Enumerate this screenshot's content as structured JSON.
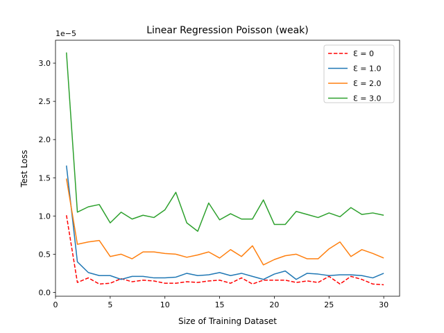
{
  "chart_data": {
    "type": "line",
    "title": "Linear Regression Poisson (weak)",
    "xlabel": "Size of Training Dataset",
    "ylabel": "Test Loss",
    "y_offset_label": "1e−5",
    "xlim": [
      0,
      31.45
    ],
    "ylim": [
      -0.05,
      3.3
    ],
    "xticks": [
      0,
      5,
      10,
      15,
      20,
      25,
      30
    ],
    "xtick_labels": [
      "0",
      "5",
      "10",
      "15",
      "20",
      "25",
      "30"
    ],
    "yticks": [
      0.0,
      0.5,
      1.0,
      1.5,
      2.0,
      2.5,
      3.0
    ],
    "ytick_labels": [
      "0.0",
      "0.5",
      "1.0",
      "1.5",
      "2.0",
      "2.5",
      "3.0"
    ],
    "grid": false,
    "legend_position": "top-right",
    "x": [
      1,
      2,
      3,
      4,
      5,
      6,
      7,
      8,
      9,
      10,
      11,
      12,
      13,
      14,
      15,
      16,
      17,
      18,
      19,
      20,
      21,
      22,
      23,
      24,
      25,
      26,
      27,
      28,
      29,
      30
    ],
    "series": [
      {
        "name": "Ɛ = 0",
        "color": "#ff0000",
        "dashed": true,
        "values": [
          1.01,
          0.13,
          0.19,
          0.11,
          0.12,
          0.18,
          0.14,
          0.16,
          0.15,
          0.12,
          0.12,
          0.14,
          0.13,
          0.15,
          0.16,
          0.12,
          0.19,
          0.11,
          0.16,
          0.16,
          0.16,
          0.13,
          0.15,
          0.13,
          0.21,
          0.11,
          0.21,
          0.17,
          0.11,
          0.1
        ]
      },
      {
        "name": "Ɛ = 1.0",
        "color": "#1f77b4",
        "dashed": false,
        "values": [
          1.66,
          0.4,
          0.26,
          0.22,
          0.22,
          0.17,
          0.21,
          0.21,
          0.19,
          0.19,
          0.2,
          0.25,
          0.22,
          0.23,
          0.26,
          0.22,
          0.25,
          0.21,
          0.17,
          0.24,
          0.28,
          0.17,
          0.25,
          0.24,
          0.22,
          0.23,
          0.23,
          0.22,
          0.19,
          0.25
        ]
      },
      {
        "name": "Ɛ = 2.0",
        "color": "#ff7f0e",
        "dashed": false,
        "values": [
          1.49,
          0.63,
          0.66,
          0.68,
          0.47,
          0.5,
          0.44,
          0.53,
          0.53,
          0.51,
          0.5,
          0.46,
          0.49,
          0.53,
          0.45,
          0.56,
          0.47,
          0.61,
          0.36,
          0.43,
          0.48,
          0.5,
          0.44,
          0.44,
          0.57,
          0.66,
          0.47,
          0.56,
          0.51,
          0.45
        ]
      },
      {
        "name": "Ɛ = 3.0",
        "color": "#2ca02c",
        "dashed": false,
        "values": [
          3.14,
          1.05,
          1.12,
          1.15,
          0.91,
          1.05,
          0.96,
          1.01,
          0.98,
          1.08,
          1.31,
          0.91,
          0.8,
          1.17,
          0.95,
          1.03,
          0.96,
          0.96,
          1.21,
          0.89,
          0.89,
          1.06,
          1.02,
          0.98,
          1.04,
          0.99,
          1.11,
          1.02,
          1.04,
          1.01
        ]
      }
    ]
  }
}
